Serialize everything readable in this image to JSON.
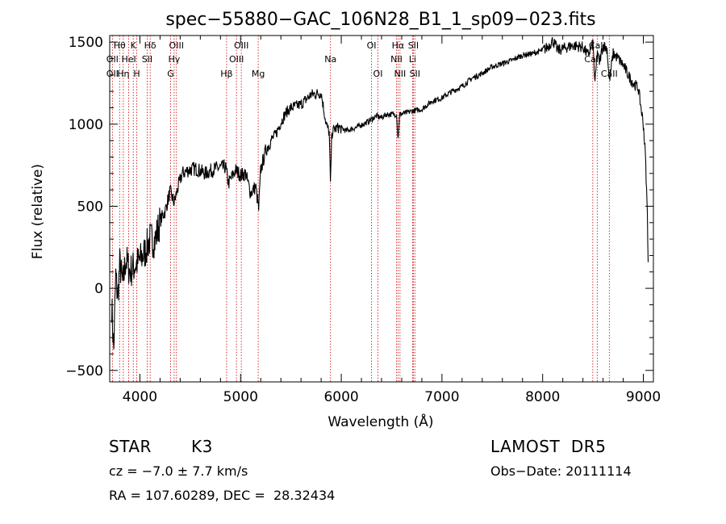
{
  "chart_data": {
    "type": "line",
    "title": "spec−55880−GAC_106N28_B1_1_sp09−023.fits",
    "xlabel": "Wavelength (Å)",
    "ylabel": "Flux (relative)",
    "xlim": [
      3700,
      9100
    ],
    "ylim": [
      -570,
      1540
    ],
    "x_ticks": [
      4000,
      5000,
      6000,
      7000,
      8000,
      9000
    ],
    "y_ticks": [
      -500,
      0,
      500,
      1000,
      1500
    ],
    "line_color": "#000000",
    "marker_color": "#cc0000",
    "spectrum": {
      "x": [
        3720,
        3740,
        3760,
        3780,
        3800,
        3830,
        3860,
        3900,
        3950,
        4000,
        4050,
        4100,
        4150,
        4200,
        4250,
        4300,
        4340,
        4380,
        4420,
        4480,
        4550,
        4650,
        4750,
        4850,
        4880,
        4950,
        5000,
        5050,
        5100,
        5150,
        5180,
        5200,
        5250,
        5300,
        5350,
        5400,
        5450,
        5500,
        5600,
        5700,
        5800,
        5850,
        5880,
        5893,
        5905,
        5930,
        5980,
        6050,
        6150,
        6250,
        6300,
        6350,
        6400,
        6450,
        6500,
        6550,
        6563,
        6580,
        6650,
        6700,
        6800,
        6900,
        7000,
        7100,
        7200,
        7300,
        7400,
        7500,
        7600,
        7700,
        7800,
        7900,
        8000,
        8050,
        8100,
        8150,
        8200,
        8300,
        8400,
        8450,
        8500,
        8520,
        8542,
        8560,
        8600,
        8640,
        8662,
        8700,
        8750,
        8800,
        8850,
        8900,
        8950,
        9000,
        9020,
        9040,
        9050
      ],
      "y": [
        -100,
        -380,
        80,
        -60,
        150,
        20,
        180,
        100,
        140,
        170,
        220,
        300,
        290,
        410,
        470,
        590,
        520,
        620,
        700,
        720,
        730,
        700,
        730,
        740,
        640,
        720,
        690,
        700,
        580,
        620,
        480,
        720,
        840,
        900,
        940,
        1010,
        1070,
        1100,
        1120,
        1180,
        1190,
        1000,
        950,
        620,
        940,
        970,
        980,
        960,
        980,
        1010,
        1030,
        1050,
        1040,
        1060,
        1060,
        1060,
        900,
        1060,
        1070,
        1080,
        1090,
        1140,
        1160,
        1200,
        1230,
        1280,
        1310,
        1350,
        1370,
        1390,
        1420,
        1430,
        1450,
        1470,
        1510,
        1450,
        1460,
        1480,
        1470,
        1420,
        1490,
        1240,
        1450,
        1370,
        1480,
        1460,
        1260,
        1430,
        1400,
        1360,
        1300,
        1250,
        1220,
        1000,
        820,
        450,
        100
      ]
    },
    "line_markers": [
      {
        "label": "Hθ",
        "x": 3798,
        "row": 0
      },
      {
        "label": "OII",
        "x": 3727,
        "row": 1
      },
      {
        "label": "OII",
        "x": 3727,
        "row": 2
      },
      {
        "label": "Hη",
        "x": 3835,
        "row": 2
      },
      {
        "label": "HeI",
        "x": 3889,
        "row": 1
      },
      {
        "label": "K",
        "x": 3934,
        "row": 0
      },
      {
        "label": "H",
        "x": 3969,
        "row": 2
      },
      {
        "label": "Hδ",
        "x": 4102,
        "row": 0
      },
      {
        "label": "SII",
        "x": 4072,
        "row": 1
      },
      {
        "label": "OIII",
        "x": 4363,
        "row": 0
      },
      {
        "label": "Hγ",
        "x": 4340,
        "row": 1
      },
      {
        "label": "G",
        "x": 4305,
        "row": 2
      },
      {
        "label": "Hβ",
        "x": 4861,
        "row": 2
      },
      {
        "label": "OIII",
        "x": 5007,
        "row": 0
      },
      {
        "label": "OIII",
        "x": 4959,
        "row": 1
      },
      {
        "label": "Mg",
        "x": 5175,
        "row": 2
      },
      {
        "label": "Na",
        "x": 5893,
        "row": 1
      },
      {
        "label": "OI",
        "x": 6300,
        "row": 0
      },
      {
        "label": "OI",
        "x": 6364,
        "row": 2
      },
      {
        "label": "Hα",
        "x": 6563,
        "row": 0
      },
      {
        "label": "NII",
        "x": 6548,
        "row": 1
      },
      {
        "label": "NII",
        "x": 6583,
        "row": 2
      },
      {
        "label": "SII",
        "x": 6716,
        "row": 0
      },
      {
        "label": "Li",
        "x": 6708,
        "row": 1
      },
      {
        "label": "SII",
        "x": 6731,
        "row": 2
      },
      {
        "label": "CaII",
        "x": 8498,
        "row": 1
      },
      {
        "label": "CaII",
        "x": 8542,
        "row": 0
      },
      {
        "label": "CaII",
        "x": 8662,
        "row": 2
      }
    ],
    "marker_lines_x": [
      3727,
      3798,
      3835,
      3889,
      3934,
      3969,
      4072,
      4102,
      4305,
      4340,
      4363,
      4861,
      4959,
      5007,
      5175,
      5893,
      6300,
      6364,
      6548,
      6563,
      6583,
      6708,
      6716,
      6731,
      8498,
      8542,
      8662
    ]
  },
  "info": {
    "object_class": "STAR",
    "subclass": "K3",
    "survey": "LAMOST  DR5",
    "velocity": "cz = −7.0 ± 7.7 km/s",
    "obs_date": "Obs−Date: 20111114",
    "coords": "RA = 107.60289, DEC =  28.32434"
  }
}
